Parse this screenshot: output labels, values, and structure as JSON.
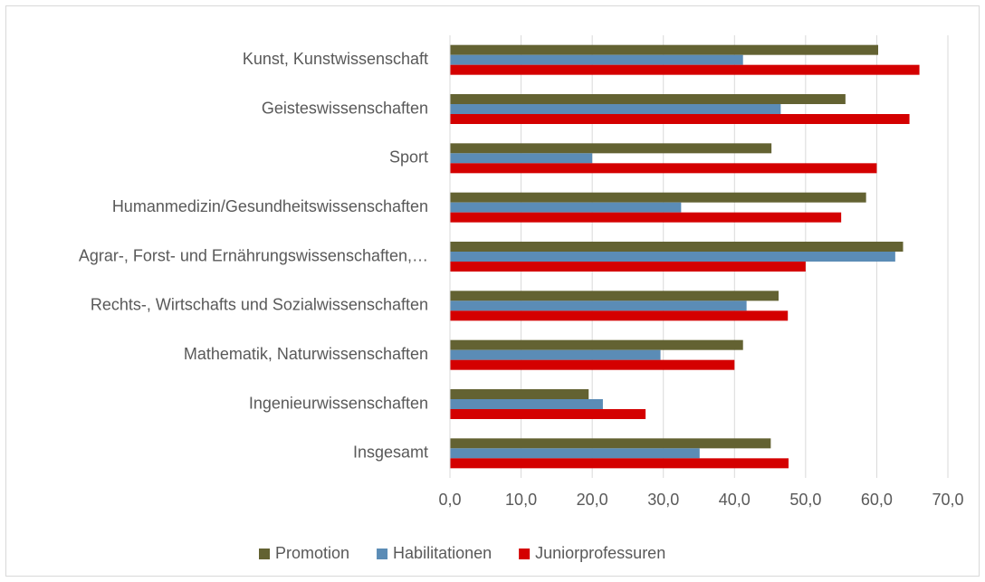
{
  "chart_data": {
    "type": "bar",
    "orientation": "horizontal",
    "categories": [
      "Kunst, Kunstwissenschaft",
      "Geisteswissenschaften",
      "Sport",
      "Humanmedizin/Gesundheitswissenschaften",
      "Agrar-, Forst- und Ernährungswissenschaften,…",
      "Rechts-, Wirtschafts und Sozialwissenschaften",
      "Mathematik, Naturwissenschaften",
      "Ingenieurwissenschaften",
      "Insgesamt"
    ],
    "series": [
      {
        "name": "Promotion",
        "color": "#636232",
        "values": [
          60.2,
          55.6,
          45.2,
          58.5,
          63.7,
          46.2,
          41.2,
          19.5,
          45.1
        ]
      },
      {
        "name": "Habilitationen",
        "color": "#5b8cb6",
        "values": [
          41.2,
          46.5,
          20.0,
          32.5,
          62.6,
          41.7,
          29.6,
          21.5,
          35.1
        ]
      },
      {
        "name": "Juniorprofessuren",
        "color": "#d40000",
        "values": [
          66.0,
          64.6,
          60.0,
          55.0,
          50.0,
          47.5,
          40.0,
          27.5,
          47.6
        ]
      }
    ],
    "xlim": [
      0,
      70
    ],
    "xticks": [
      {
        "value": 0,
        "label": "0,0"
      },
      {
        "value": 10,
        "label": "10,0"
      },
      {
        "value": 20,
        "label": "20,0"
      },
      {
        "value": 30,
        "label": "30,0"
      },
      {
        "value": 40,
        "label": "40,0"
      },
      {
        "value": 50,
        "label": "50,0"
      },
      {
        "value": 60,
        "label": "60,0"
      },
      {
        "value": 70,
        "label": "70,0"
      }
    ],
    "grid": true,
    "legend": "bottom"
  }
}
